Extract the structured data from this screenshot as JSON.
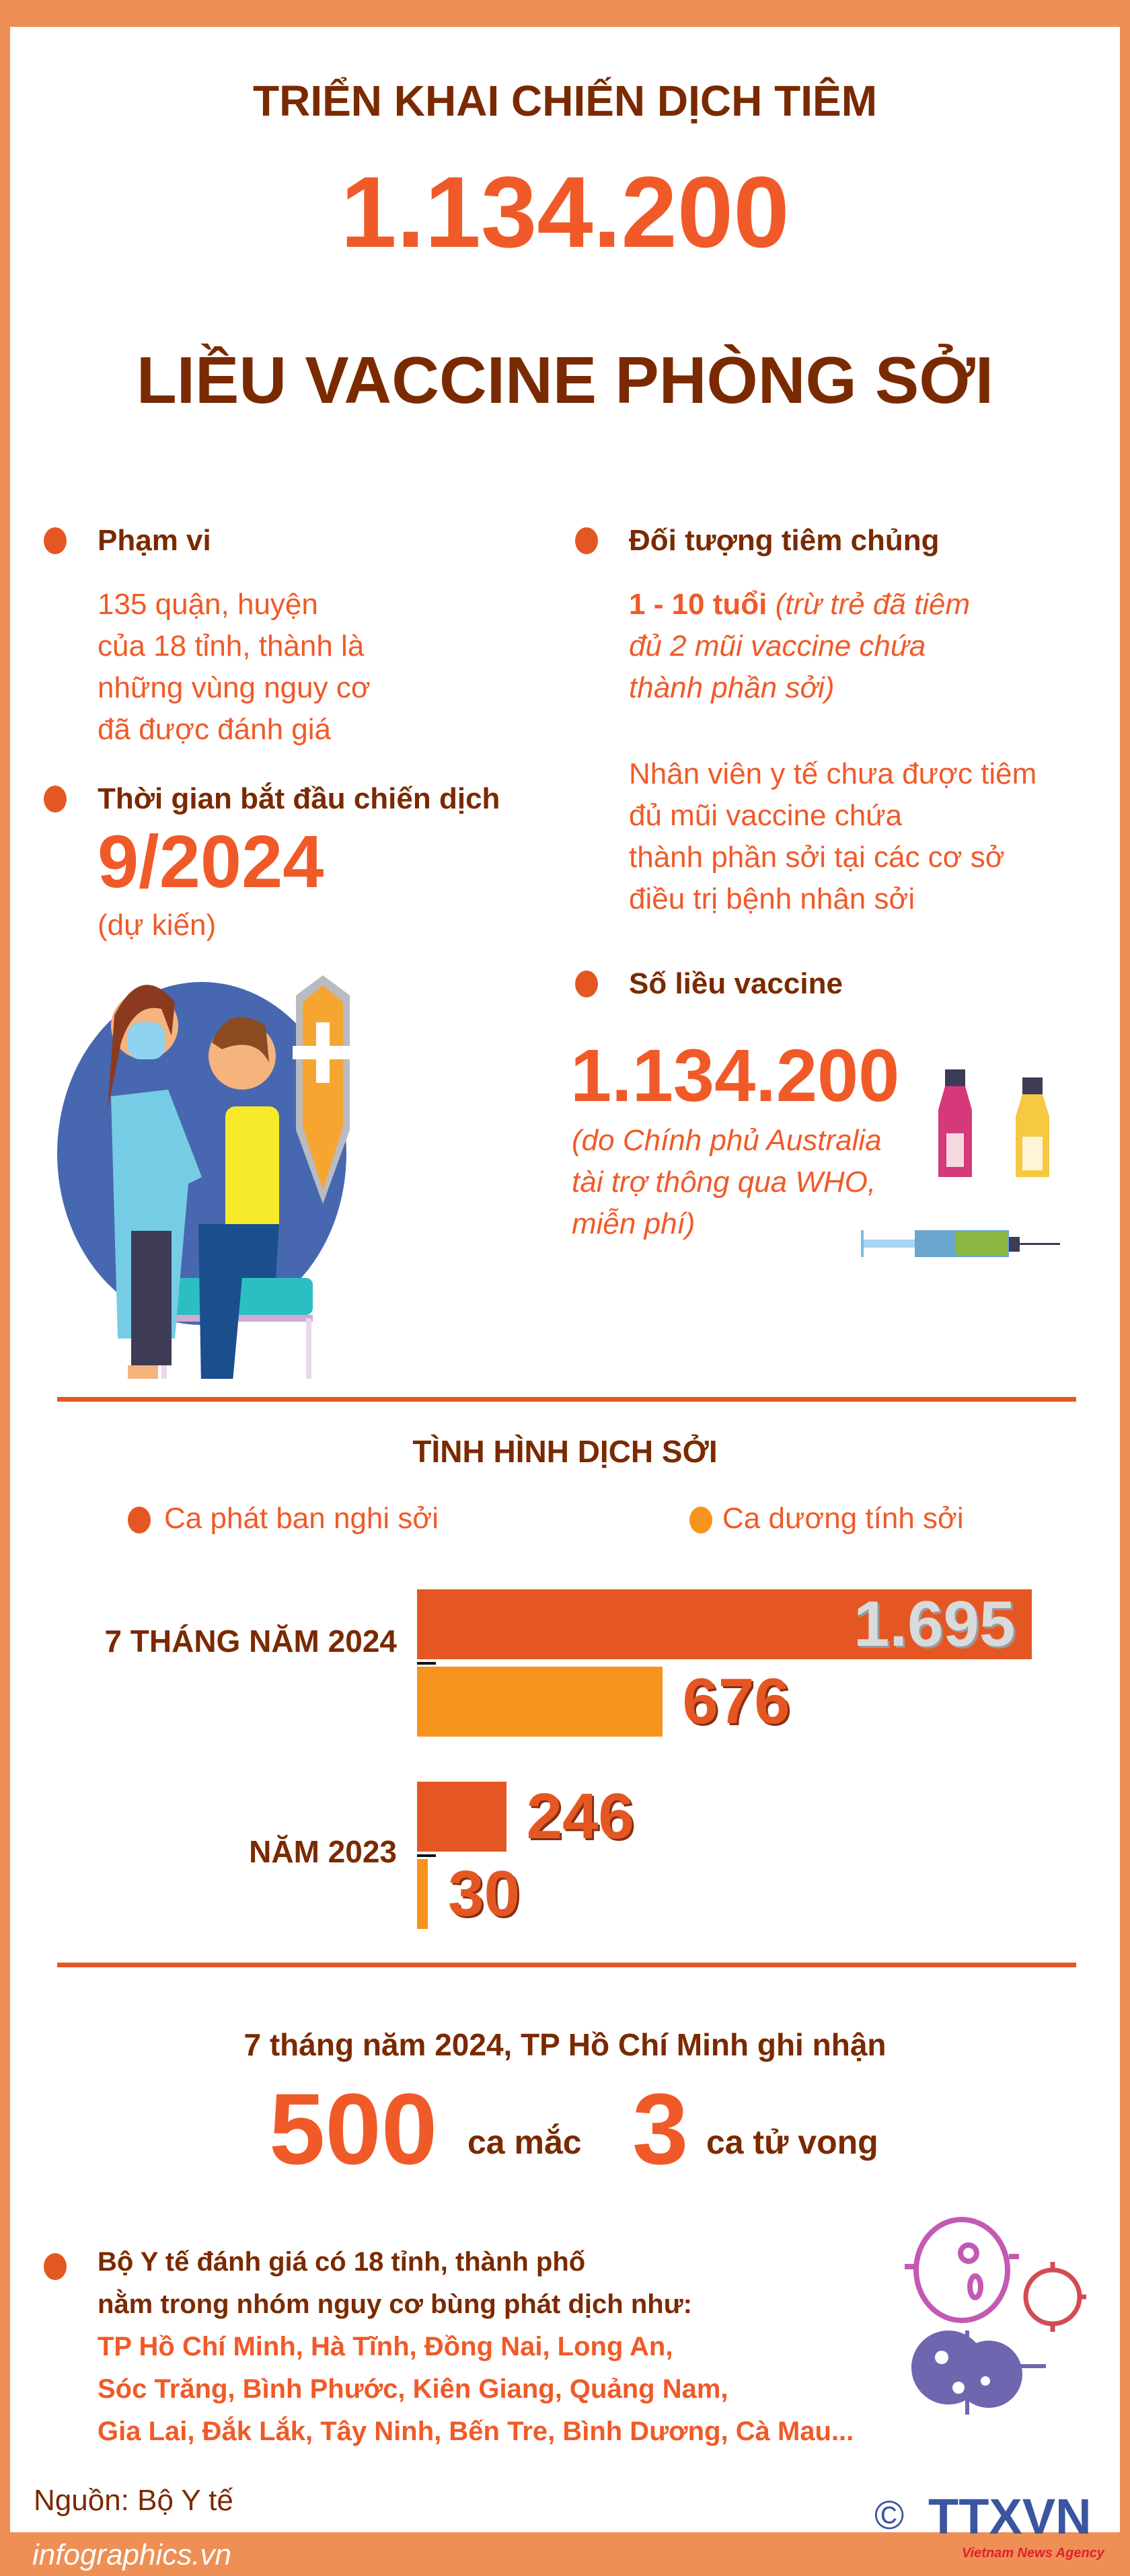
{
  "header": {
    "line1": "TRIỂN KHAI CHIẾN DỊCH TIÊM",
    "number": "1.134.200",
    "line3": "LIỀU VACCINE PHÒNG SỞI"
  },
  "scope": {
    "title": "Phạm vi",
    "lines": [
      "135 quận, huyện",
      "của 18 tỉnh, thành là",
      "những vùng nguy cơ",
      "đã được đánh giá"
    ]
  },
  "start": {
    "title": "Thời gian bắt đầu chiến dịch",
    "date": "9/2024",
    "note": "(dự kiến)"
  },
  "target": {
    "title": "Đối tượng tiêm chủng",
    "age": "1 - 10 tuổi",
    "age_note_lines": [
      "(trừ trẻ đã tiêm",
      "đủ 2 mũi vaccine chứa",
      "thành phần sởi)"
    ],
    "staff_lines": [
      "Nhân viên y tế chưa được tiêm",
      "đủ mũi vaccine chứa",
      "thành phần sởi tại các cơ sở",
      "điều trị bệnh nhân sởi"
    ]
  },
  "doses": {
    "title": "Số liều vaccine",
    "number": "1.134.200",
    "note_lines": [
      "(do Chính phủ Australia",
      "tài trợ thông qua WHO,",
      "miễn phí)"
    ]
  },
  "chart_data": {
    "type": "bar",
    "orientation": "horizontal",
    "title": "TÌNH HÌNH DỊCH SỞI",
    "categories": [
      "7 THÁNG NĂM 2024",
      "NĂM 2023"
    ],
    "series": [
      {
        "name": "Ca phát ban nghi sởi",
        "values": [
          1695,
          246
        ],
        "labels": [
          "1.695",
          "246"
        ],
        "color": "#E55722"
      },
      {
        "name": "Ca dương tính sởi",
        "values": [
          676,
          30
        ],
        "labels": [
          "676",
          "30"
        ],
        "color": "#F7941D"
      }
    ],
    "legend_position": "top",
    "grid": false
  },
  "hcm": {
    "intro": "7 tháng năm 2024, TP Hồ Chí Minh ghi nhận",
    "cases": "500",
    "cases_label": "ca mắc",
    "deaths": "3",
    "deaths_label": "ca tử vong"
  },
  "risk": {
    "lines": [
      "Bộ Y tế đánh giá có 18 tỉnh, thành phố",
      "nằm trong nhóm nguy cơ bùng phát dịch như:"
    ],
    "provinces": [
      "TP Hồ Chí Minh, Hà Tĩnh, Đồng Nai, Long An,",
      "Sóc Trăng, Bình Phước, Kiên Giang, Quảng Nam,",
      "Gia Lai, Đắk Lắk, Tây Ninh, Bến Tre, Bình Dương, Cà Mau..."
    ]
  },
  "footer": {
    "source": "Nguồn: Bộ Y tế",
    "site": "infographics.vn",
    "copyright": "©",
    "logo": "TTXVN",
    "logo_sub": "Vietnam News Agency"
  },
  "colors": {
    "brown": "#7A2A00",
    "accent": "#F05A28",
    "bar_primary": "#E55722",
    "bar_secondary": "#F7941D",
    "border": "#EE8F55"
  }
}
